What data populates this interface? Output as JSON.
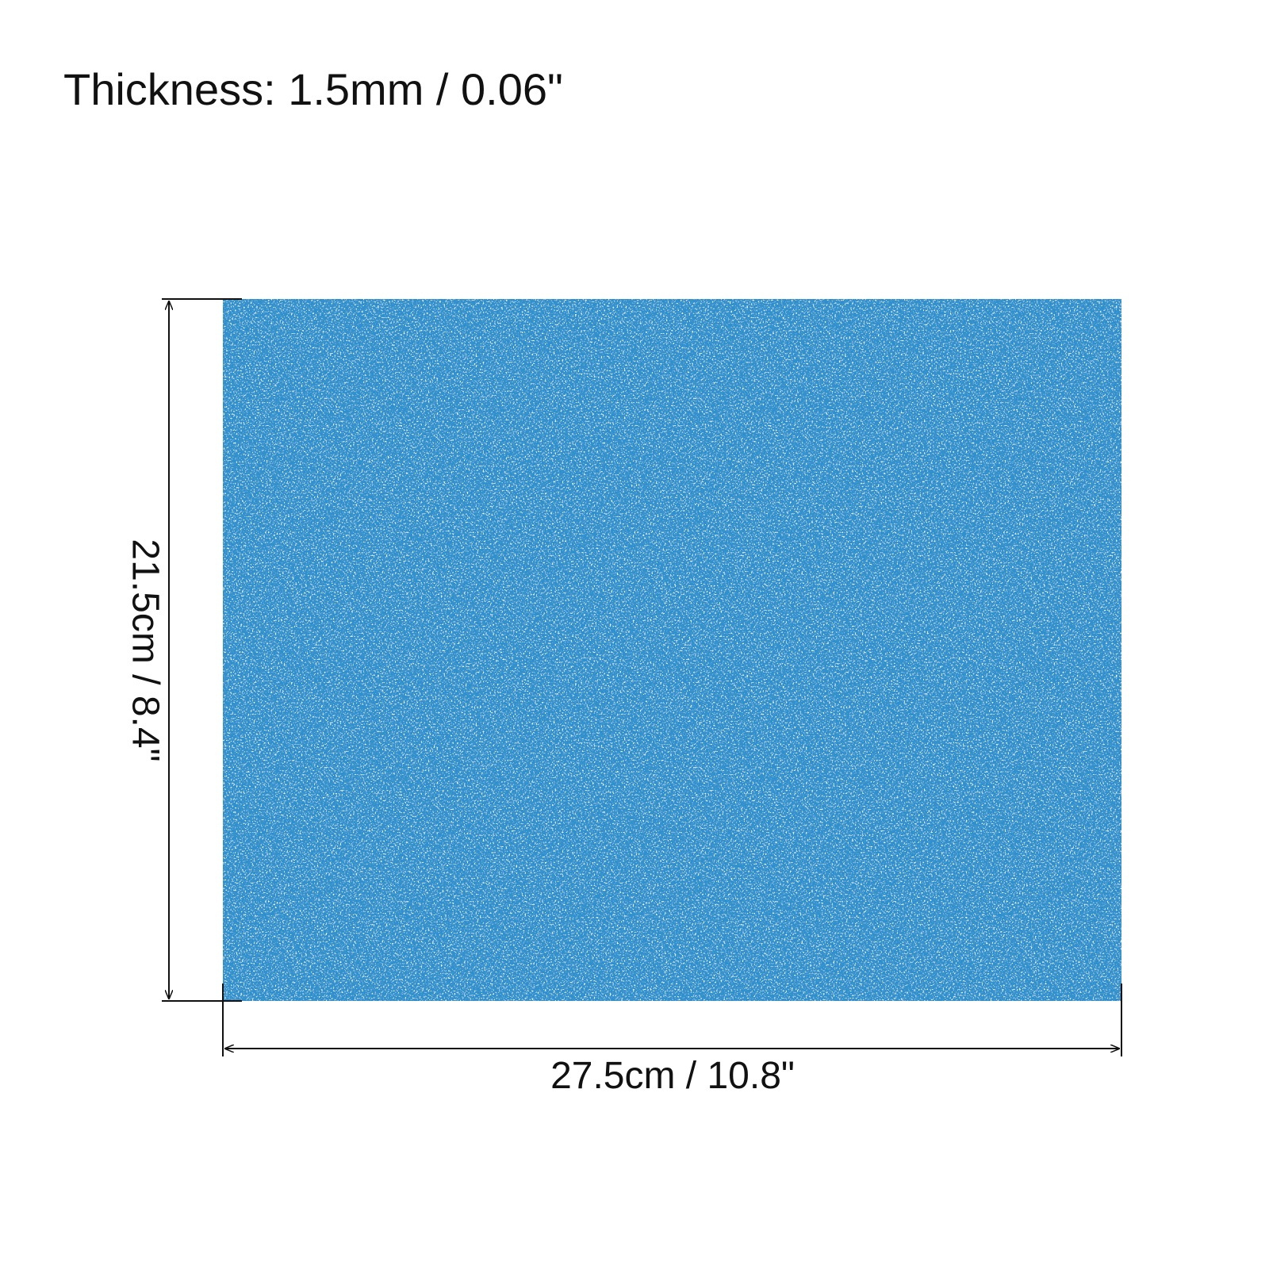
{
  "header": {
    "title": "Thickness: 1.5mm / 0.06\""
  },
  "dimensions": {
    "height": "21.5cm / 8.4\"",
    "width": "27.5cm / 10.8\""
  }
}
